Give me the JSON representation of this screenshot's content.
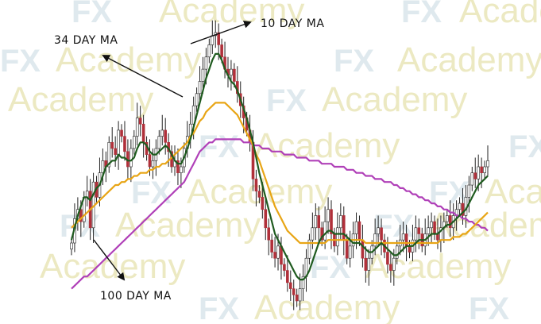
{
  "watermark": {
    "brand_fx": "FX",
    "brand_academy": "Academy"
  },
  "annotations": {
    "ma10": "10 DAY MA",
    "ma34": "34 DAY MA",
    "ma100": "100 DAY MA"
  },
  "colors": {
    "up_candle": "#ffffff",
    "down_candle": "#b0303a",
    "wick": "#222222",
    "ma10": "#1f5b1f",
    "ma34": "#e8a515",
    "ma100": "#b040b8",
    "watermark_text": "#ece9c2",
    "watermark_fx": "#dfe9ee"
  },
  "chart_data": {
    "type": "candlestick",
    "ylim": [
      0,
      100
    ],
    "grid": false,
    "legend": "none",
    "title": "",
    "xlabel": "",
    "ylabel": "",
    "close": [
      25,
      33,
      36,
      32,
      40,
      42,
      30,
      45,
      40,
      48,
      52,
      50,
      58,
      56,
      54,
      62,
      60,
      55,
      50,
      56,
      60,
      66,
      64,
      58,
      54,
      50,
      52,
      56,
      60,
      62,
      58,
      55,
      50,
      52,
      48,
      50,
      56,
      60,
      64,
      70,
      74,
      78,
      82,
      86,
      90,
      93,
      94,
      90,
      86,
      82,
      80,
      82,
      78,
      74,
      70,
      66,
      62,
      58,
      46,
      42,
      40,
      36,
      30,
      26,
      22,
      20,
      24,
      18,
      16,
      12,
      10,
      8,
      6,
      10,
      14,
      20,
      26,
      30,
      34,
      30,
      26,
      32,
      36,
      28,
      24,
      30,
      34,
      26,
      20,
      24,
      28,
      32,
      26,
      20,
      16,
      20,
      24,
      28,
      30,
      26,
      22,
      18,
      16,
      20,
      24,
      26,
      28,
      24,
      22,
      26,
      30,
      28,
      24,
      28,
      30,
      32,
      28,
      26,
      30,
      32,
      34,
      30,
      34,
      36,
      38,
      34,
      40,
      44,
      48,
      46,
      50,
      48,
      50,
      52
    ],
    "ma10": [
      26,
      30,
      34,
      37,
      40,
      40,
      39,
      41,
      43,
      44,
      47,
      50,
      51,
      52,
      52,
      54,
      53,
      53,
      52,
      52,
      53,
      56,
      58,
      58,
      57,
      55,
      54,
      54,
      55,
      56,
      57,
      56,
      54,
      52,
      51,
      51,
      53,
      56,
      59,
      63,
      67,
      71,
      75,
      79,
      82,
      85,
      87,
      87,
      85,
      82,
      80,
      78,
      77,
      75,
      72,
      69,
      66,
      62,
      58,
      53,
      48,
      44,
      40,
      36,
      32,
      28,
      26,
      24,
      22,
      20,
      18,
      16,
      14,
      13,
      13,
      14,
      16,
      19,
      22,
      25,
      27,
      28,
      29,
      29,
      28,
      28,
      28,
      28,
      27,
      26,
      25,
      25,
      25,
      24,
      23,
      22,
      22,
      23,
      24,
      25,
      24,
      23,
      22,
      21,
      21,
      22,
      23,
      24,
      24,
      24,
      25,
      26,
      26,
      26,
      27,
      28,
      28,
      28,
      29,
      30,
      31,
      31,
      32,
      33,
      34,
      35,
      36,
      38,
      40,
      42,
      44,
      45,
      46,
      47
    ],
    "ma34": [
      30,
      31,
      32,
      33,
      34,
      35,
      36,
      37,
      38,
      39,
      40,
      41,
      42,
      43,
      44,
      44,
      45,
      45,
      46,
      46,
      47,
      47,
      48,
      48,
      48,
      49,
      49,
      50,
      50,
      51,
      51,
      52,
      53,
      54,
      55,
      56,
      57,
      58,
      60,
      61,
      63,
      65,
      66,
      68,
      69,
      70,
      71,
      71,
      71,
      71,
      70,
      69,
      68,
      67,
      65,
      63,
      61,
      59,
      57,
      54,
      52,
      49,
      46,
      43,
      40,
      37,
      35,
      33,
      31,
      29,
      28,
      27,
      26,
      25,
      25,
      25,
      25,
      25,
      25,
      25,
      25,
      25,
      26,
      26,
      26,
      26,
      26,
      26,
      26,
      26,
      26,
      26,
      26,
      26,
      25,
      25,
      25,
      25,
      25,
      25,
      25,
      25,
      25,
      25,
      25,
      25,
      25,
      25,
      25,
      25,
      25,
      25,
      25,
      25,
      25,
      25,
      25,
      25,
      26,
      26,
      26,
      26,
      27,
      27,
      27,
      28,
      28,
      29,
      30,
      31,
      32,
      33,
      34,
      35
    ],
    "ma100": [
      10,
      11,
      12,
      13,
      14,
      14,
      15,
      16,
      17,
      18,
      19,
      20,
      21,
      22,
      23,
      24,
      25,
      26,
      27,
      28,
      29,
      30,
      31,
      32,
      33,
      34,
      35,
      36,
      37,
      38,
      39,
      40,
      41,
      42,
      43,
      44,
      45,
      47,
      49,
      51,
      53,
      55,
      56,
      57,
      58,
      58,
      59,
      59,
      59,
      59,
      59,
      59,
      59,
      59,
      59,
      58,
      58,
      58,
      57,
      57,
      57,
      56,
      56,
      56,
      55,
      55,
      55,
      55,
      54,
      54,
      54,
      54,
      53,
      53,
      53,
      53,
      52,
      52,
      52,
      52,
      51,
      51,
      51,
      51,
      50,
      50,
      50,
      50,
      49,
      49,
      49,
      48,
      48,
      48,
      47,
      47,
      47,
      46,
      46,
      46,
      45,
      45,
      45,
      44,
      44,
      43,
      43,
      42,
      42,
      41,
      41,
      40,
      40,
      39,
      39,
      38,
      38,
      37,
      37,
      36,
      36,
      35,
      35,
      34,
      34,
      33,
      33,
      32,
      32,
      31,
      31,
      30,
      30,
      29
    ]
  }
}
